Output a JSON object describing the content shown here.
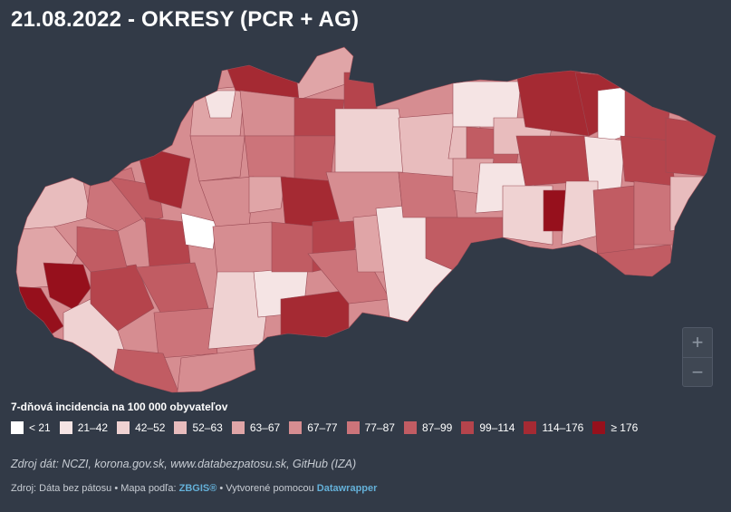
{
  "title": "21.08.2022 - OKRESY (PCR + AG)",
  "legend": {
    "title": "7-dňová incidencia na 100 000 obyvateľov",
    "items": [
      {
        "label": "< 21",
        "color": "#ffffff"
      },
      {
        "label": "21–42",
        "color": "#f5e4e4"
      },
      {
        "label": "42–52",
        "color": "#efd2d2"
      },
      {
        "label": "52–63",
        "color": "#e8bcbd"
      },
      {
        "label": "63–67",
        "color": "#e0a5a7"
      },
      {
        "label": "67–77",
        "color": "#d68d91"
      },
      {
        "label": "77–87",
        "color": "#cc747a"
      },
      {
        "label": "87–99",
        "color": "#c15c63"
      },
      {
        "label": "99–114",
        "color": "#b5444c"
      },
      {
        "label": "114–176",
        "color": "#a52a33"
      },
      {
        "label": "≥ 176",
        "color": "#96101c"
      }
    ]
  },
  "source": "Zdroj dát: NCZI, korona.gov.sk, www.databezpatosu.sk, GitHub (IZA)",
  "footer": {
    "prefix": "Zdroj: Dáta bez pátosu • Mapa podľa: ",
    "map_credit": "ZBGIS®",
    "middle": " • Vytvorené pomocou ",
    "tool": "Datawrapper"
  },
  "zoom": {
    "in": "+",
    "out": "−"
  }
}
